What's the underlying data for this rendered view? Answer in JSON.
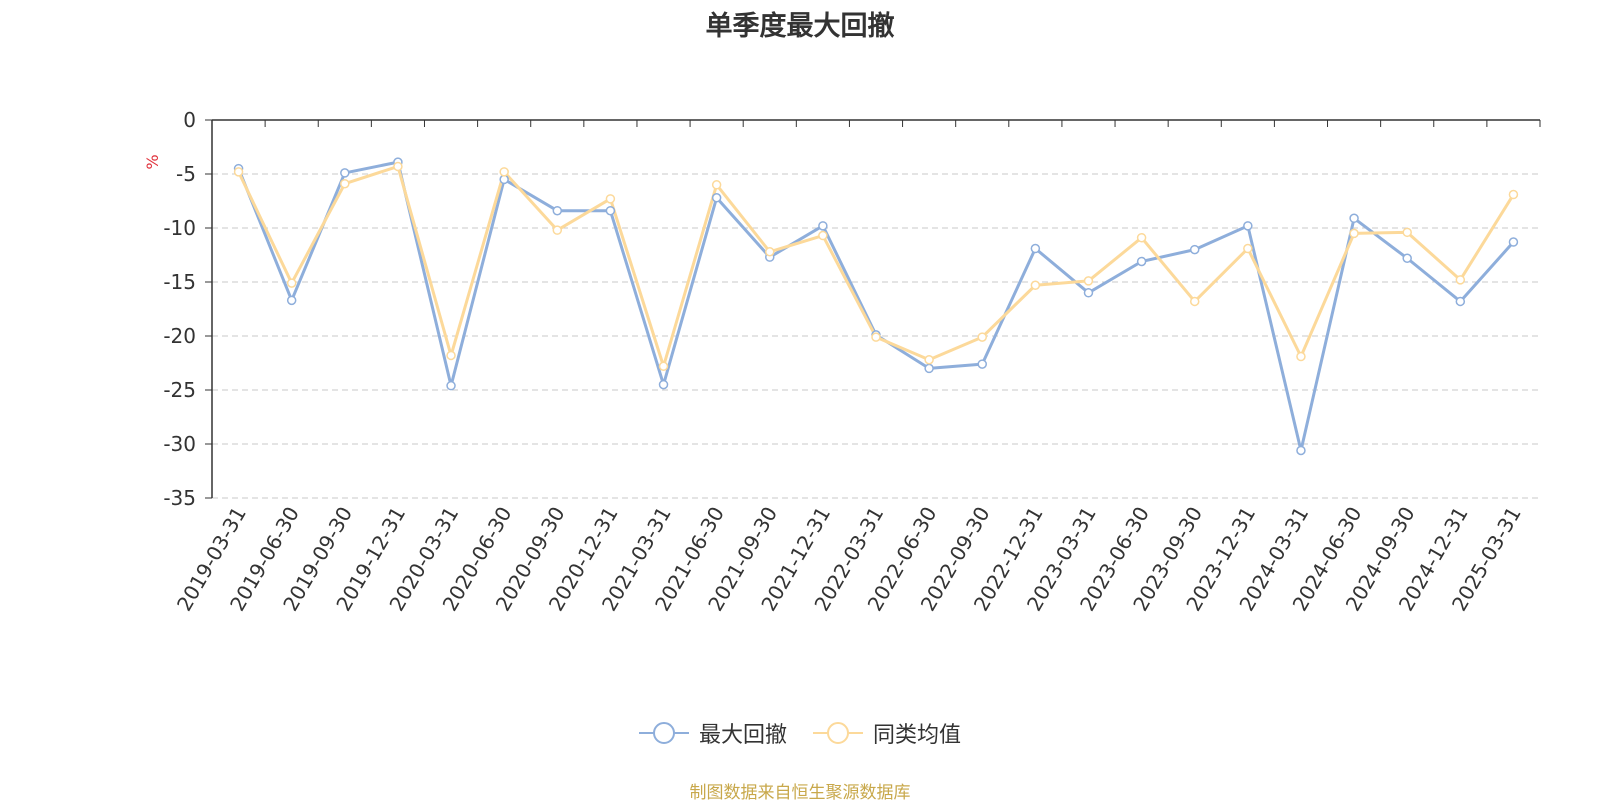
{
  "chart_data": {
    "type": "line",
    "title": "单季度最大回撤",
    "ylabel": "%",
    "ylim": [
      -35,
      0
    ],
    "yticks": [
      0,
      -5,
      -10,
      -15,
      -20,
      -25,
      -30,
      -35
    ],
    "grid": true,
    "legend_position": "bottom-center",
    "categories": [
      "2019-03-31",
      "2019-06-30",
      "2019-09-30",
      "2019-12-31",
      "2020-03-31",
      "2020-06-30",
      "2020-09-30",
      "2020-12-31",
      "2021-03-31",
      "2021-06-30",
      "2021-09-30",
      "2021-12-31",
      "2022-03-31",
      "2022-06-30",
      "2022-09-30",
      "2022-12-31",
      "2023-03-31",
      "2023-06-30",
      "2023-09-30",
      "2023-12-31",
      "2024-03-31",
      "2024-06-30",
      "2024-09-30",
      "2024-12-31",
      "2025-03-31"
    ],
    "series": [
      {
        "name": "最大回撤",
        "color": "#8eaedb",
        "values": [
          -4.5,
          -16.7,
          -4.9,
          -3.9,
          -24.6,
          -5.5,
          -8.4,
          -8.4,
          -24.5,
          -7.2,
          -12.7,
          -9.8,
          -19.9,
          -23.0,
          -22.6,
          -11.9,
          -16.0,
          -13.1,
          -12.0,
          -9.8,
          -30.6,
          -9.1,
          -12.8,
          -16.8,
          -11.3
        ]
      },
      {
        "name": "同类均值",
        "color": "#fcd99a",
        "values": [
          -4.8,
          -15.1,
          -5.9,
          -4.3,
          -21.8,
          -4.8,
          -10.2,
          -7.3,
          -22.8,
          -6.0,
          -12.2,
          -10.7,
          -20.1,
          -22.2,
          -20.1,
          -15.3,
          -14.9,
          -10.9,
          -16.8,
          -11.9,
          -21.9,
          -10.5,
          -10.4,
          -14.8,
          -6.9
        ]
      }
    ]
  },
  "legend": {
    "series1": "最大回撤",
    "series2": "同类均值"
  },
  "source": "制图数据来自恒生聚源数据库",
  "colors": {
    "axis": "#333333",
    "grid": "#c8c8c8",
    "ylabel": "#e0303a",
    "source": "#c8a84b"
  }
}
